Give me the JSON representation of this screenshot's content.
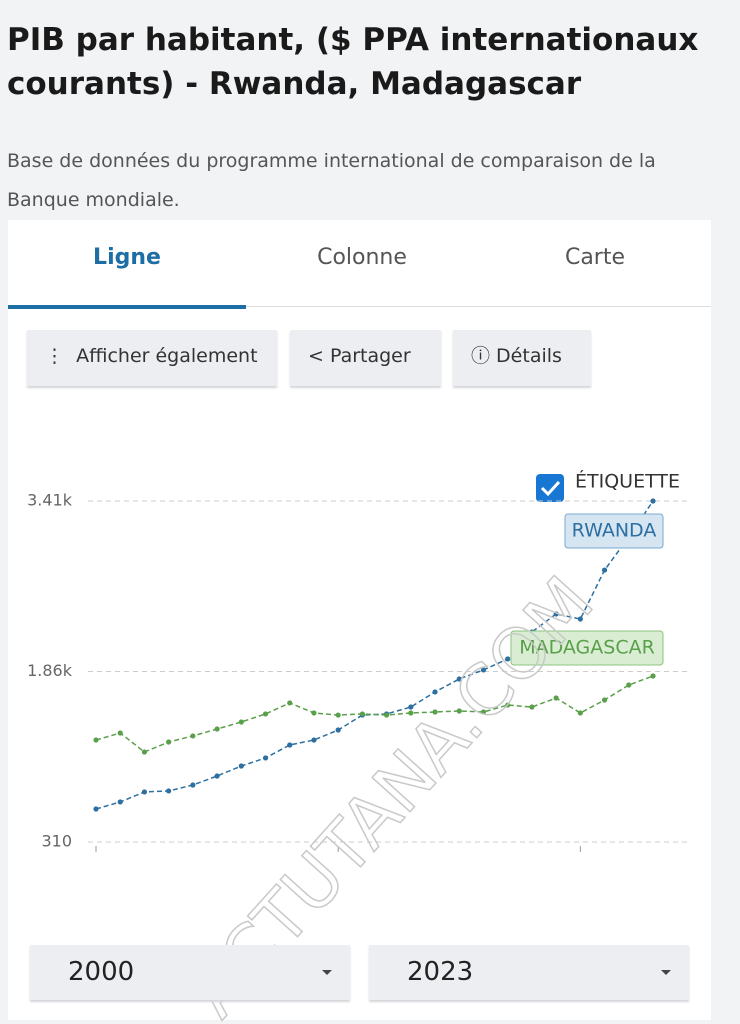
{
  "header": {
    "title": "PIB par habitant, ($ PPA internationaux courants) - Rwanda, Madagascar",
    "source": "Base de données du programme international de comparaison de la Banque mondiale."
  },
  "tabs": [
    "Ligne",
    "Colonne",
    "Carte"
  ],
  "buttons": [
    "Afficher également",
    "Partager",
    "Détails"
  ],
  "label_toggle": "ÉTIQUETTE",
  "watermark": "ACTUTANA.COM",
  "range": {
    "start": "2000",
    "end": "2023"
  },
  "chart_data": {
    "type": "line",
    "x": [
      2000,
      2001,
      2002,
      2003,
      2004,
      2005,
      2006,
      2007,
      2008,
      2009,
      2010,
      2011,
      2012,
      2013,
      2014,
      2015,
      2016,
      2017,
      2018,
      2019,
      2020,
      2021,
      2022,
      2023
    ],
    "xlim": [
      2000,
      2023
    ],
    "xticks": [
      2000,
      2010,
      2020
    ],
    "ylim": [
      310,
      3410
    ],
    "yticks": [
      310,
      {
        "value": 1860,
        "label": "1.86k"
      },
      {
        "value": 3410,
        "label": "3.41k"
      }
    ],
    "grid": true,
    "series": [
      {
        "name": "RWANDA",
        "color": "#2c6fa0",
        "values": [
          610,
          674,
          765,
          774,
          828,
          910,
          1001,
          1074,
          1192,
          1237,
          1328,
          1464,
          1474,
          1537,
          1674,
          1792,
          1874,
          1974,
          2219,
          2383,
          2337,
          2782,
          3082,
          3410
        ]
      },
      {
        "name": "MADAGASCAR",
        "color": "#5a9f4a",
        "values": [
          1237,
          1301,
          1128,
          1219,
          1274,
          1337,
          1401,
          1474,
          1574,
          1483,
          1464,
          1474,
          1464,
          1483,
          1492,
          1501,
          1492,
          1555,
          1537,
          1619,
          1483,
          1601,
          1737,
          1819
        ]
      }
    ]
  }
}
